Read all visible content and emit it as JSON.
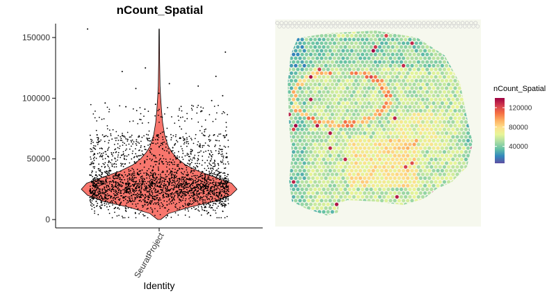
{
  "chart_data": [
    {
      "type": "violin",
      "title": "nCount_Spatial",
      "xlabel": "Identity",
      "ylabel": "",
      "categories": [
        "SeuratProject"
      ],
      "ylim": [
        -5000,
        162000
      ],
      "yticks": [
        0,
        50000,
        100000,
        150000
      ],
      "ytick_labels": [
        "0",
        "50000",
        "100000",
        "150000"
      ],
      "fill_color": "#f8766d",
      "point_color": "#000000",
      "violin_profile": [
        {
          "y": 0,
          "w": 0.02
        },
        {
          "y": 5000,
          "w": 0.12
        },
        {
          "y": 10000,
          "w": 0.38
        },
        {
          "y": 15000,
          "w": 0.72
        },
        {
          "y": 20000,
          "w": 0.92
        },
        {
          "y": 25000,
          "w": 1.0
        },
        {
          "y": 30000,
          "w": 0.93
        },
        {
          "y": 35000,
          "w": 0.72
        },
        {
          "y": 40000,
          "w": 0.5
        },
        {
          "y": 45000,
          "w": 0.34
        },
        {
          "y": 50000,
          "w": 0.24
        },
        {
          "y": 55000,
          "w": 0.17
        },
        {
          "y": 60000,
          "w": 0.12
        },
        {
          "y": 70000,
          "w": 0.07
        },
        {
          "y": 80000,
          "w": 0.045
        },
        {
          "y": 90000,
          "w": 0.03
        },
        {
          "y": 100000,
          "w": 0.02
        },
        {
          "y": 110000,
          "w": 0.012
        },
        {
          "y": 130000,
          "w": 0.006
        },
        {
          "y": 157000,
          "w": 0.003
        }
      ],
      "outliers": [
        138000,
        125000,
        122000,
        118000,
        112000,
        108000,
        102000,
        98000,
        96000,
        93000,
        91000,
        157000,
        110000,
        104000,
        95000
      ],
      "grid": false,
      "legend": "none"
    },
    {
      "type": "spatial_heatmap",
      "legend_title": "nCount_Spatial",
      "colorbar_ticks": [
        40000,
        80000,
        120000
      ],
      "colorbar_tick_labels": [
        "40000",
        "80000",
        "120000"
      ],
      "color_range": [
        5000,
        140000
      ],
      "colormap": [
        "#5e4fa2",
        "#3288bd",
        "#66c2a5",
        "#abdda4",
        "#e6f598",
        "#fee08b",
        "#fdae61",
        "#f46d43",
        "#d53e4f",
        "#9e0142"
      ],
      "legend": "right"
    }
  ]
}
